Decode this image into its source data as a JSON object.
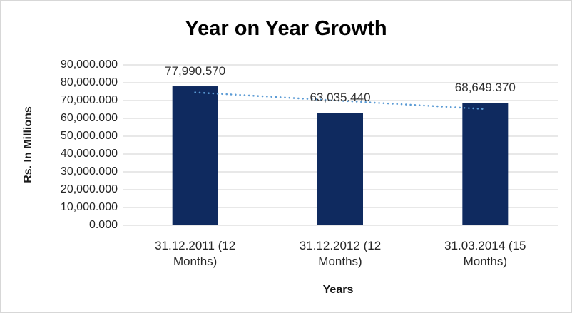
{
  "window": {
    "background": "#ffffff",
    "border_color": "#d7d7d7"
  },
  "chart_data": {
    "type": "bar",
    "title": "Year on Year Growth",
    "ylabel": "Rs. In Millions",
    "xlabel": "Years",
    "categories": [
      "31.12.2011 (12 Months)",
      "31.12.2012 (12 Months)",
      "31.03.2014 (15 Months)"
    ],
    "values": [
      77990.57,
      63035.44,
      68649.37
    ],
    "data_labels": [
      "77,990.570",
      "63,035.440",
      "68,649.370"
    ],
    "y_tick_values": [
      0,
      10000,
      20000,
      30000,
      40000,
      50000,
      60000,
      70000,
      80000,
      90000
    ],
    "y_tick_labels": [
      "0.000",
      "10,000.000",
      "20,000.000",
      "30,000.000",
      "40,000.000",
      "50,000.000",
      "60,000.000",
      "70,000.000",
      "80,000.000",
      "90,000.000"
    ],
    "ylim": [
      0,
      90000
    ],
    "grid": true,
    "legend": "none",
    "trendline": {
      "type": "linear",
      "style": "dotted"
    },
    "colors": {
      "bar": "#0f2a5f",
      "trendline": "#5b9bd5",
      "gridline": "#d9d9d9",
      "axis_text": "#262626",
      "title_text": "#000000"
    }
  }
}
